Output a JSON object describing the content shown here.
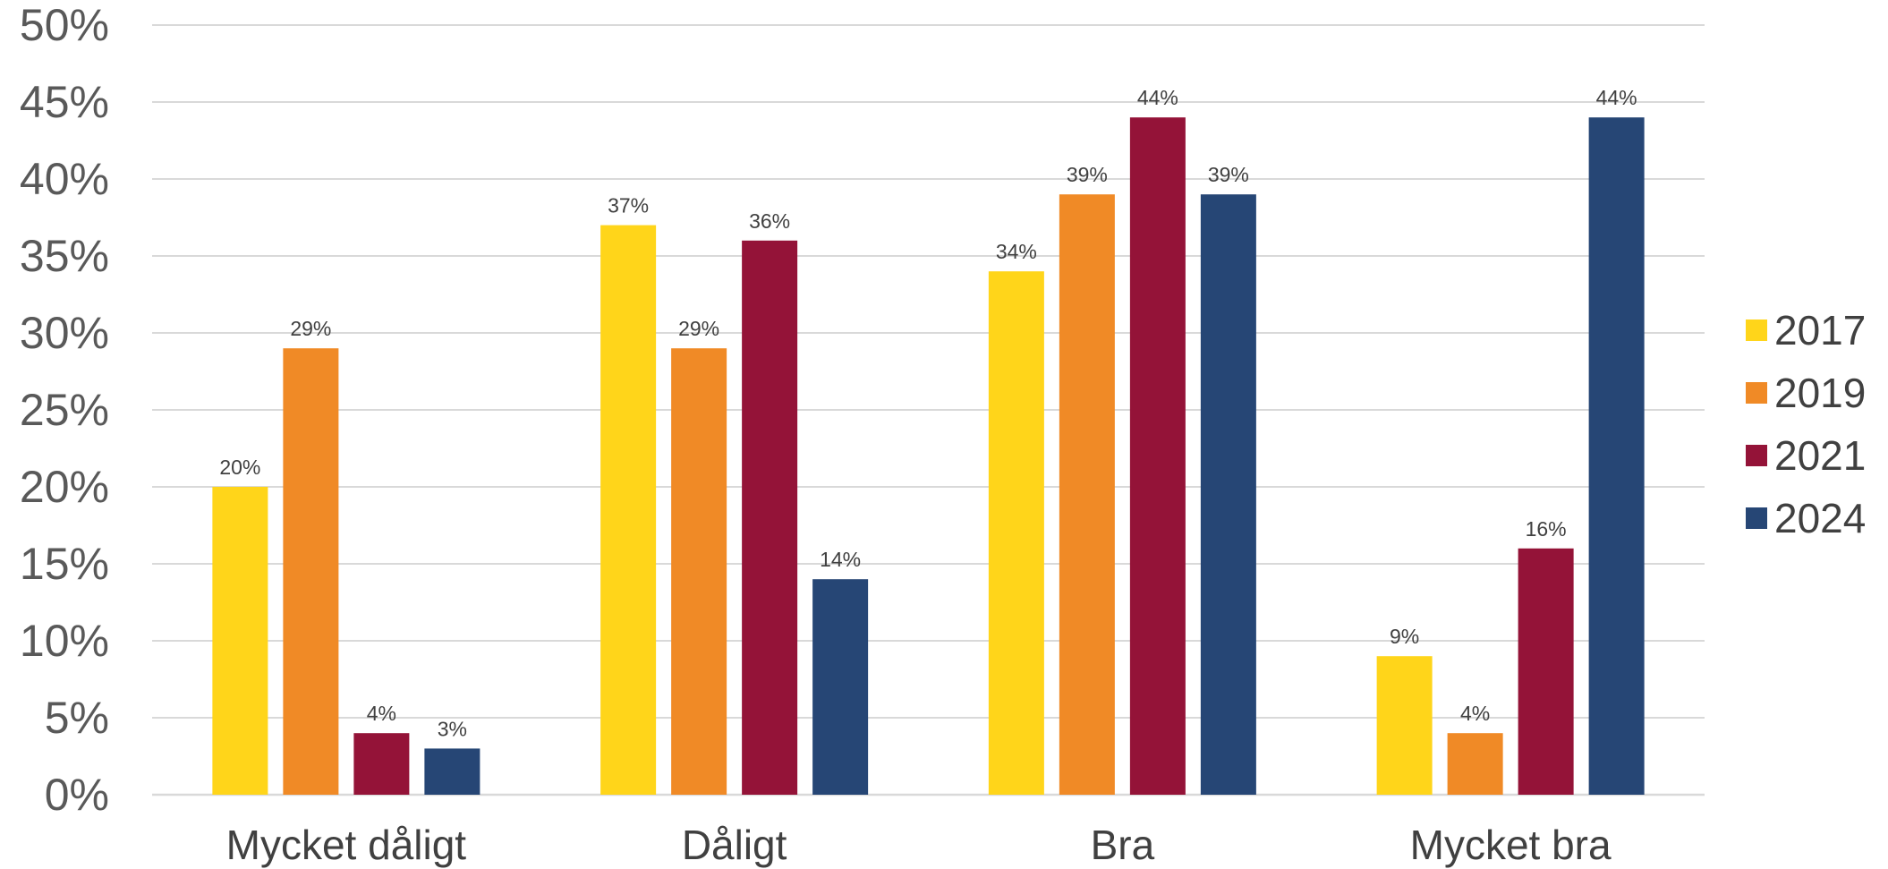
{
  "chart_data": {
    "type": "bar",
    "title": "",
    "xlabel": "",
    "ylabel": "",
    "ylim": [
      0,
      50
    ],
    "y_ticks": [
      "0%",
      "5%",
      "10%",
      "15%",
      "20%",
      "25%",
      "30%",
      "35%",
      "40%",
      "45%",
      "50%"
    ],
    "grid": true,
    "legend_position": "right",
    "categories": [
      "Mycket dåligt",
      "Dåligt",
      "Bra",
      "Mycket bra"
    ],
    "series": [
      {
        "name": "2017",
        "color": "#FFD51A",
        "values": [
          20,
          37,
          34,
          9
        ],
        "labels": [
          "20%",
          "37%",
          "34%",
          "9%"
        ]
      },
      {
        "name": "2019",
        "color": "#F08A26",
        "values": [
          29,
          29,
          39,
          4
        ],
        "labels": [
          "29%",
          "29%",
          "39%",
          "4%"
        ]
      },
      {
        "name": "2021",
        "color": "#941338",
        "values": [
          4,
          36,
          44,
          16
        ],
        "labels": [
          "4%",
          "36%",
          "44%",
          "16%"
        ]
      },
      {
        "name": "2024",
        "color": "#264675",
        "values": [
          3,
          14,
          39,
          44
        ],
        "labels": [
          "3%",
          "14%",
          "39%",
          "44%"
        ]
      }
    ]
  }
}
